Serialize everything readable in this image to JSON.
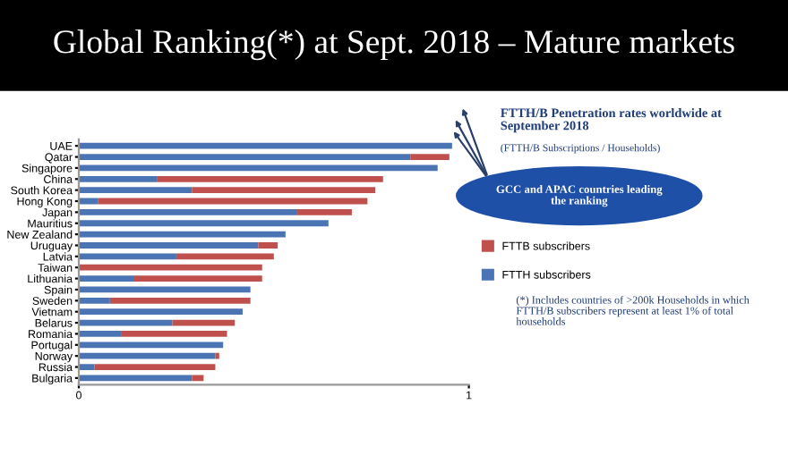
{
  "chart_data": {
    "type": "bar",
    "orientation": "horizontal",
    "stacked": true,
    "title": "Global Ranking(*) at Sept. 2018 – Mature markets",
    "categories": [
      "UAE",
      "Qatar",
      "Singapore",
      "China",
      "South Korea",
      "Hong Kong",
      "Japan",
      "Mauritius",
      "New Zealand",
      "Uruguay",
      "Latvia",
      "Taiwan",
      "Lithuania",
      "Spain",
      "Sweden",
      "Vietnam",
      "Belarus",
      "Romania",
      "Portugal",
      "Norway",
      "Russia",
      "Bulgaria"
    ],
    "series": [
      {
        "name": "FTTH subscribers",
        "color": "#4a74b4",
        "values": [
          0.957,
          0.85,
          0.92,
          0.2,
          0.29,
          0.05,
          0.56,
          0.64,
          0.53,
          0.46,
          0.25,
          0,
          0.14,
          0.44,
          0.08,
          0.42,
          0.24,
          0.11,
          0.37,
          0.35,
          0.04,
          0.29
        ]
      },
      {
        "name": "FTTB subscribers",
        "color": "#c0504d",
        "values": [
          0,
          0.1,
          0,
          0.58,
          0.47,
          0.69,
          0.14,
          0,
          0,
          0.05,
          0.25,
          0.47,
          0.33,
          0,
          0.36,
          0,
          0.16,
          0.27,
          0,
          0.01,
          0.31,
          0.03
        ]
      }
    ],
    "xlim": [
      0,
      1
    ],
    "xticks": [
      0,
      1
    ],
    "legend": "right",
    "grid": false,
    "annotations": [
      "FTTH/B Penetration rates worldwide at September 2018",
      "(FTTH/B Subscriptions / Households)",
      "GCC and APAC countries leading the ranking",
      "(*) Includes countries of >200k Households in which FTTH/B subscribers represent at least 1% of total households"
    ]
  }
}
